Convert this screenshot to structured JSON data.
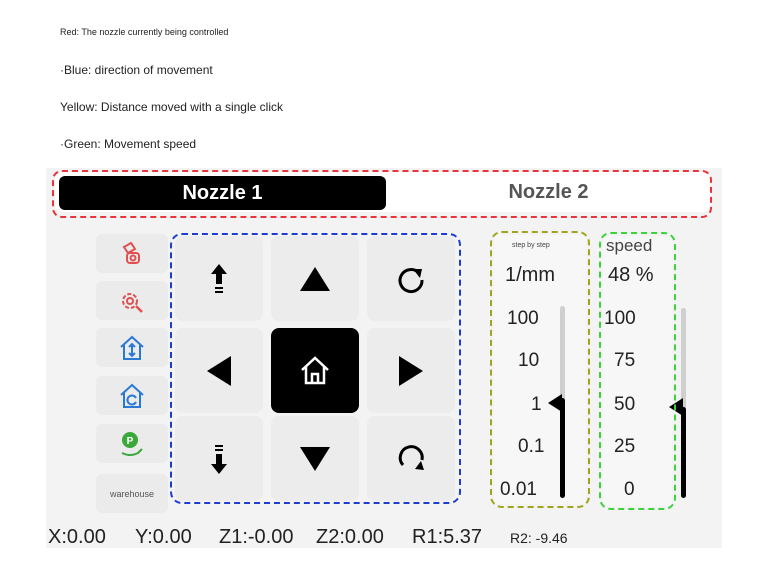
{
  "notes": {
    "red": "Red: The nozzle currently being controlled",
    "blue": "·Blue: direction of movement",
    "yellow": "Yellow: Distance moved with a single click",
    "green": "·Green: Movement speed"
  },
  "tabs": [
    {
      "label": "Nozzle 1",
      "active": true
    },
    {
      "label": "Nozzle 2",
      "active": false
    }
  ],
  "sidebar": {
    "icons": [
      "nozzle-calibrate-icon",
      "gear-wrench-icon",
      "home-z-icon",
      "home-rotate-icon",
      "park-position-icon"
    ],
    "warehouse_label": "warehouse"
  },
  "jog": {
    "buttons": [
      "z-up-icon",
      "y-up-icon",
      "rotate-cw-icon",
      "x-left-icon",
      "home-icon",
      "x-right-icon",
      "z-down-icon",
      "y-down-icon",
      "rotate-ccw-icon"
    ]
  },
  "step": {
    "title": "step by step",
    "unit": "1/mm",
    "ticks": [
      "100",
      "10",
      "1",
      "0.1",
      "0.01"
    ],
    "selected": "1"
  },
  "speed": {
    "title": "speed",
    "value": "48 %",
    "ticks": [
      "100",
      "75",
      "50",
      "25",
      "0"
    ],
    "level_percent": 48
  },
  "status": {
    "x": "X:0.00",
    "y": "Y:0.00",
    "z1": "Z1:-0.00",
    "z2": "Z2:0.00",
    "r1": "R1:5.37",
    "r2": "R2: -9.46"
  },
  "colors": {
    "red_outline": "#e8353b",
    "blue_outline": "#1e3ccf",
    "yellow_outline": "#9ea51d",
    "green_outline": "#3cd23c",
    "icon_red": "#e05050",
    "icon_blue": "#2a7ad5",
    "icon_green": "#3aa83a"
  }
}
